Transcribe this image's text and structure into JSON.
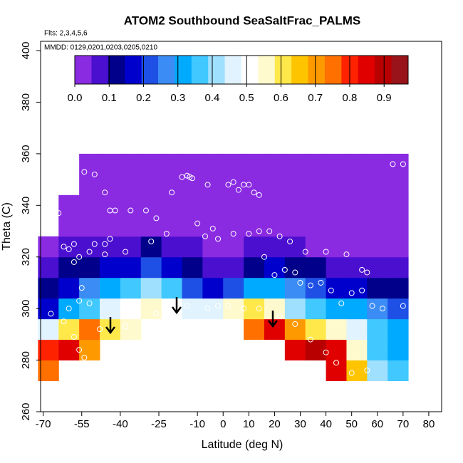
{
  "chart_data": {
    "type": "heatmap",
    "title": "ATOM2 Southbound SeaSaltFrac_PALMS",
    "subtitle": "Flts: 2,3,4,5,6",
    "annotation": "MMDD: 0129,0201,0203,0205,0210",
    "x_label": "Latitude (deg N)",
    "y_label": "Theta (C)",
    "xlim": [
      -71,
      85
    ],
    "ylim": [
      260,
      403.6
    ],
    "xticks": [
      -70,
      -55,
      -40,
      -25,
      -10,
      0,
      10,
      20,
      30,
      40,
      50,
      60,
      70,
      80
    ],
    "yticks": [
      260,
      280,
      300,
      320,
      340,
      360,
      380,
      400
    ],
    "cell_size": [
      8,
      8
    ],
    "x": [
      -68,
      -60,
      -52,
      -44,
      -36,
      -28,
      -20,
      -12,
      -4,
      4,
      12,
      20,
      28,
      36,
      44,
      52,
      60,
      68
    ],
    "y": [
      276,
      284,
      292,
      300,
      308,
      316,
      324,
      332,
      340,
      348,
      356
    ],
    "z": [
      [
        0.75,
        null,
        null,
        null,
        null,
        null,
        null,
        null,
        null,
        null,
        null,
        null,
        null,
        null,
        0.85,
        0.65,
        0.4,
        0.35
      ],
      [
        0.8,
        0.85,
        0.7,
        null,
        null,
        null,
        null,
        null,
        null,
        null,
        null,
        null,
        0.85,
        0.9,
        0.85,
        0.55,
        0.35,
        0.3
      ],
      [
        0.45,
        0.6,
        0.75,
        0.6,
        0.55,
        null,
        null,
        null,
        null,
        null,
        0.75,
        0.85,
        0.7,
        0.6,
        0.55,
        0.45,
        0.35,
        0.3
      ],
      [
        0.15,
        0.3,
        0.35,
        0.45,
        0.5,
        0.55,
        0.5,
        0.45,
        0.45,
        0.55,
        0.6,
        0.55,
        0.4,
        0.35,
        0.3,
        0.3,
        0.25,
        0.2
      ],
      [
        0.1,
        0.15,
        0.25,
        0.3,
        0.35,
        0.4,
        0.35,
        0.2,
        0.15,
        0.2,
        0.3,
        0.3,
        0.25,
        0.2,
        0.15,
        0.15,
        0.1,
        0.1
      ],
      [
        0.05,
        0.1,
        0.12,
        0.15,
        0.18,
        0.2,
        0.15,
        0.1,
        0.05,
        0.08,
        0.1,
        0.15,
        0.12,
        0.1,
        0.08,
        0.06,
        0.05,
        0.05
      ],
      [
        0.03,
        0.05,
        0.06,
        0.08,
        0.08,
        0.1,
        0.08,
        0.05,
        0.03,
        0.03,
        0.05,
        0.06,
        0.05,
        0.04,
        0.03,
        0.03,
        0.03,
        0.03
      ],
      [
        null,
        0.03,
        0.04,
        0.04,
        0.03,
        0.03,
        0.03,
        0.03,
        0.03,
        0.02,
        0.02,
        0.02,
        0.02,
        0.02,
        0.02,
        0.02,
        0.02,
        0.02
      ],
      [
        null,
        0.02,
        0.02,
        0.02,
        0.02,
        0.02,
        0.02,
        0.02,
        0.02,
        0.02,
        0.02,
        0.02,
        0.02,
        0.02,
        0.02,
        0.02,
        0.02,
        0.02
      ],
      [
        null,
        null,
        0.02,
        0.02,
        0.02,
        0.02,
        0.02,
        0.02,
        0.02,
        0.02,
        0.02,
        0.02,
        0.02,
        0.02,
        0.02,
        0.02,
        0.02,
        0.02
      ],
      [
        null,
        null,
        0.02,
        0.02,
        0.02,
        0.02,
        0.02,
        0.02,
        0.02,
        0.02,
        0.02,
        0.02,
        0.02,
        0.02,
        0.02,
        0.02,
        0.02,
        0.02
      ]
    ],
    "zlim": [
      0,
      0.97
    ],
    "colors": [
      "#8a2be2",
      "#4b0fd0",
      "#00008b",
      "#0000cd",
      "#1e50e6",
      "#3c8cf5",
      "#00aaff",
      "#40c8ff",
      "#a0e0ff",
      "#e0f3ff",
      "#ffffff",
      "#fffacd",
      "#ffe84a",
      "#ffc400",
      "#ff9900",
      "#ff7000",
      "#ff2200",
      "#e00000",
      "#b80000",
      "#98141a"
    ],
    "zticks": [
      {
        "value": 0,
        "label": "0.0"
      },
      0.1,
      0.2,
      0.3,
      0.4,
      0.5,
      0.6,
      0.7,
      0.8,
      0.9
    ],
    "points": {
      "x": [
        -66,
        -64,
        -62,
        -60,
        -58,
        -54,
        -50,
        -46,
        -44,
        -42,
        -58,
        -56,
        -52,
        -50,
        -46,
        -38,
        -36,
        -30,
        -26,
        -22,
        -28,
        -20,
        -16,
        -14,
        -13,
        -12,
        -6,
        -10,
        -7,
        -4,
        -2,
        2,
        4,
        6,
        8,
        10,
        12,
        14,
        4,
        10,
        14,
        18,
        22,
        26,
        32,
        40,
        48,
        54,
        56,
        16,
        20,
        24,
        28,
        30,
        34,
        38,
        42,
        46,
        50,
        54,
        58,
        62,
        66,
        70,
        70,
        -55,
        -56,
        -60,
        -67,
        -62,
        -48,
        -38,
        -26,
        -14,
        -6,
        -2,
        2,
        8,
        14,
        22,
        28,
        34,
        40,
        44,
        50,
        56,
        -54,
        -56,
        -58,
        -52,
        -46,
        -44
      ],
      "y": [
        331,
        337,
        324,
        323,
        325,
        353,
        352,
        345,
        338,
        338,
        318,
        320,
        322,
        325,
        325,
        322,
        338,
        338,
        335,
        329,
        326,
        345,
        351,
        351.5,
        351,
        350.5,
        348,
        333,
        328,
        331,
        327,
        348,
        349,
        346,
        348,
        348,
        345,
        344,
        329,
        329,
        330,
        330,
        328,
        326,
        322,
        322,
        321,
        315,
        314,
        320,
        313,
        315,
        314,
        310,
        309,
        310,
        307,
        302,
        306,
        307,
        301,
        300,
        356,
        356,
        301,
        308,
        303,
        300,
        298,
        295,
        292,
        293,
        298,
        301,
        300,
        301,
        301,
        300,
        300,
        297,
        294,
        288,
        283,
        279,
        275,
        276,
        281,
        284,
        289,
        302,
        321,
        327
      ]
    }
  }
}
